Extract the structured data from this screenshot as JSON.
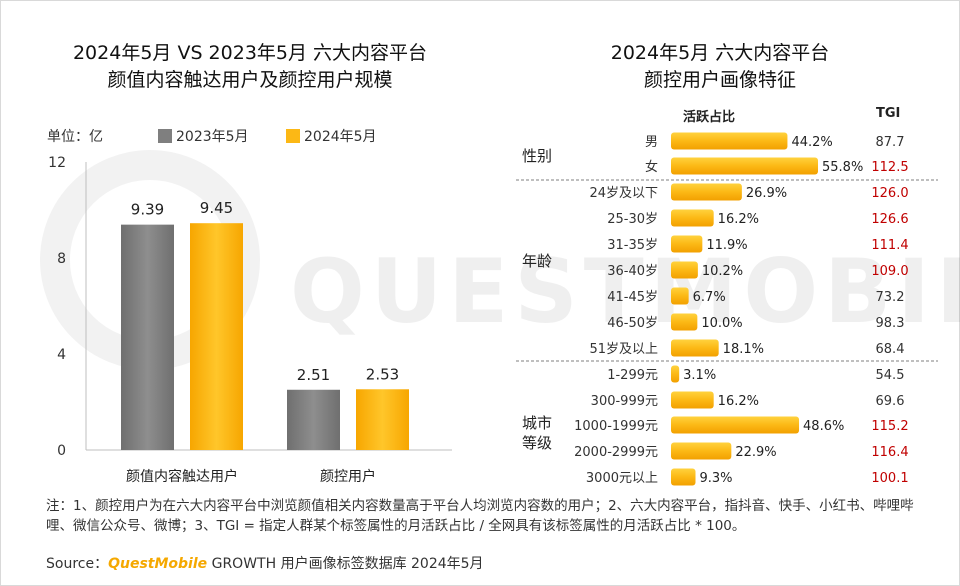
{
  "watermark_text": "QUESTMOBILE",
  "left_chart": {
    "title_line1": "2024年5月 VS 2023年5月 六大内容平台",
    "title_line2": "颜值内容触达用户及颜控用户规模",
    "unit": "单位：亿",
    "colors": {
      "y2023": "#7f7f7f",
      "y2024": "#fcb815"
    }
  },
  "right_chart": {
    "title_line1": "2024年5月 六大内容平台",
    "title_line2": "颜控用户画像特征",
    "col_active": "活跃占比",
    "col_tgi": "TGI",
    "highlight_color": "#c00000"
  },
  "chart_data": [
    {
      "type": "bar",
      "categories": [
        "颜值内容触达用户",
        "颜控用户"
      ],
      "series": [
        {
          "name": "2023年5月",
          "values": [
            9.39,
            2.51
          ]
        },
        {
          "name": "2024年5月",
          "values": [
            9.45,
            2.53
          ]
        }
      ],
      "value_labels": [
        [
          "9.39",
          "2.51"
        ],
        [
          "9.45",
          "2.53"
        ]
      ],
      "ylim": [
        0,
        12
      ],
      "yticks": [
        "0",
        "4",
        "8",
        "12"
      ],
      "legend": "top"
    },
    {
      "type": "bar",
      "orientation": "horizontal",
      "groups": [
        {
          "name": "性别",
          "items": [
            {
              "label": "男",
              "value": 44.2,
              "value_label": "44.2%",
              "tgi": "87.7",
              "tgi_high": false
            },
            {
              "label": "女",
              "value": 55.8,
              "value_label": "55.8%",
              "tgi": "112.5",
              "tgi_high": true
            }
          ]
        },
        {
          "name": "年龄",
          "items": [
            {
              "label": "24岁及以下",
              "value": 26.9,
              "value_label": "26.9%",
              "tgi": "126.0",
              "tgi_high": true
            },
            {
              "label": "25-30岁",
              "value": 16.2,
              "value_label": "16.2%",
              "tgi": "126.6",
              "tgi_high": true
            },
            {
              "label": "31-35岁",
              "value": 11.9,
              "value_label": "11.9%",
              "tgi": "111.4",
              "tgi_high": true
            },
            {
              "label": "36-40岁",
              "value": 10.2,
              "value_label": "10.2%",
              "tgi": "109.0",
              "tgi_high": true
            },
            {
              "label": "41-45岁",
              "value": 6.7,
              "value_label": "6.7%",
              "tgi": "73.2",
              "tgi_high": false
            },
            {
              "label": "46-50岁",
              "value": 10.0,
              "value_label": "10.0%",
              "tgi": "98.3",
              "tgi_high": false
            },
            {
              "label": "51岁及以上",
              "value": 18.1,
              "value_label": "18.1%",
              "tgi": "68.4",
              "tgi_high": false
            }
          ]
        },
        {
          "name": "城市等级",
          "name_lines": [
            "城市",
            "等级"
          ],
          "items": [
            {
              "label": "1-299元",
              "value": 3.1,
              "value_label": "3.1%",
              "tgi": "54.5",
              "tgi_high": false
            },
            {
              "label": "300-999元",
              "value": 16.2,
              "value_label": "16.2%",
              "tgi": "69.6",
              "tgi_high": false
            },
            {
              "label": "1000-1999元",
              "value": 48.6,
              "value_label": "48.6%",
              "tgi": "115.2",
              "tgi_high": true
            },
            {
              "label": "2000-2999元",
              "value": 22.9,
              "value_label": "22.9%",
              "tgi": "116.4",
              "tgi_high": true
            },
            {
              "label": "3000元以上",
              "value": 9.3,
              "value_label": "9.3%",
              "tgi": "100.1",
              "tgi_high": true
            }
          ]
        }
      ]
    }
  ],
  "footnote": "注：1、颜控用户为在六大内容平台中浏览颜值相关内容数量高于平台人均浏览内容数的用户；2、六大内容平台，指抖音、快手、小红书、哔哩哔哩、微信公众号、微博；3、TGI = 指定人群某个标签属性的月活跃占比 / 全网具有该标签属性的月活跃占比 * 100。",
  "source": {
    "prefix": "Source：",
    "brand": "QuestMobile",
    "suffix": " GROWTH 用户画像标签数据库 2024年5月"
  }
}
